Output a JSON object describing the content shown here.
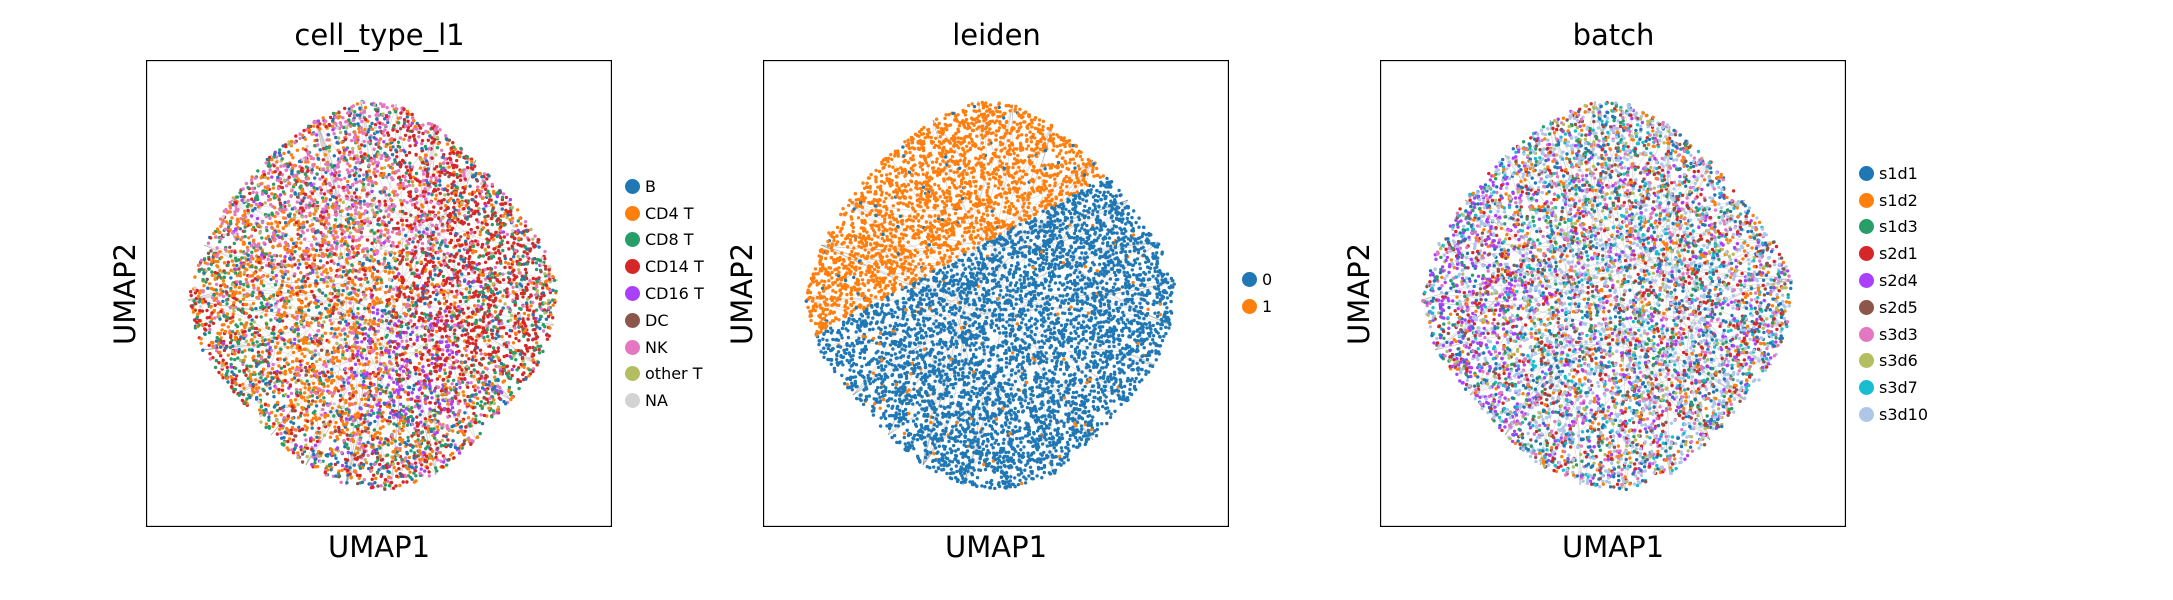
{
  "figure": {
    "panels": [
      {
        "title": "cell_type_l1",
        "xlabel": "UMAP1",
        "ylabel": "UMAP2"
      },
      {
        "title": "leiden",
        "xlabel": "UMAP1",
        "ylabel": "UMAP2"
      },
      {
        "title": "batch",
        "xlabel": "UMAP1",
        "ylabel": "UMAP2"
      }
    ]
  },
  "chart_data": [
    {
      "type": "scatter",
      "title": "cell_type_l1",
      "xlabel": "UMAP1",
      "ylabel": "UMAP2",
      "ticks": "none",
      "legend_position": "right",
      "categories": [
        {
          "label": "B",
          "color": "#1f77b4"
        },
        {
          "label": "CD4 T",
          "color": "#ff7f0e"
        },
        {
          "label": "CD8 T",
          "color": "#279e68"
        },
        {
          "label": "CD14 T",
          "color": "#d62728"
        },
        {
          "label": "CD16 T",
          "color": "#aa40fc"
        },
        {
          "label": "DC",
          "color": "#8c564b"
        },
        {
          "label": "NK",
          "color": "#e377c2"
        },
        {
          "label": "other T",
          "color": "#b5bd61"
        },
        {
          "label": "NA",
          "color": "#d3d3d3"
        }
      ]
    },
    {
      "type": "scatter",
      "title": "leiden",
      "xlabel": "UMAP1",
      "ylabel": "UMAP2",
      "ticks": "none",
      "legend_position": "right",
      "categories": [
        {
          "label": "0",
          "color": "#1f77b4"
        },
        {
          "label": "1",
          "color": "#ff7f0e"
        }
      ]
    },
    {
      "type": "scatter",
      "title": "batch",
      "xlabel": "UMAP1",
      "ylabel": "UMAP2",
      "ticks": "none",
      "legend_position": "right",
      "categories": [
        {
          "label": "s1d1",
          "color": "#1f77b4"
        },
        {
          "label": "s1d2",
          "color": "#ff7f0e"
        },
        {
          "label": "s1d3",
          "color": "#279e68"
        },
        {
          "label": "s2d1",
          "color": "#d62728"
        },
        {
          "label": "s2d4",
          "color": "#aa40fc"
        },
        {
          "label": "s2d5",
          "color": "#8c564b"
        },
        {
          "label": "s3d3",
          "color": "#e377c2"
        },
        {
          "label": "s3d6",
          "color": "#b5bd61"
        },
        {
          "label": "s3d7",
          "color": "#17becf"
        },
        {
          "label": "s3d10",
          "color": "#aec7e8"
        }
      ]
    }
  ]
}
